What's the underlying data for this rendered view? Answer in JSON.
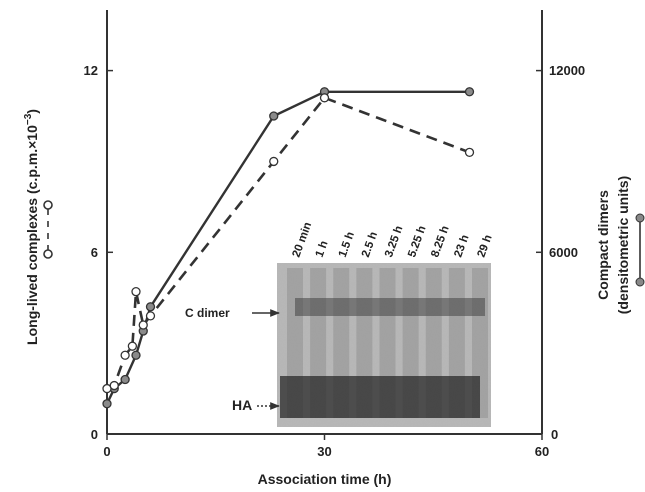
{
  "chart_data": {
    "type": "line",
    "xlabel": "Association time (h)",
    "ylabel_left": "Long-lived complexes (c.p.m.×10",
    "ylabel_left_exp": "−3",
    "ylabel_left_close": ")",
    "ylabel_right_line1": "Compact dimers",
    "ylabel_right_line2": "(densitometric units)",
    "xlim": [
      0,
      60
    ],
    "ylim_left": [
      0,
      14
    ],
    "ylim_right": [
      0,
      14000
    ],
    "x_ticks": [
      "0",
      "30",
      "60"
    ],
    "y_left_ticks": [
      "0",
      "6",
      "12"
    ],
    "y_right_ticks": [
      "0",
      "6000",
      "12000"
    ],
    "series": [
      {
        "marker": "filled",
        "line": "solid",
        "axis": "right",
        "x": [
          0,
          1,
          2.5,
          4,
          5,
          6,
          23,
          30,
          50
        ],
        "y": [
          1000,
          1500,
          1800,
          2600,
          3400,
          4200,
          10500,
          11300,
          11300
        ]
      },
      {
        "marker": "open",
        "line": "dashed",
        "axis": "left",
        "x": [
          0,
          1,
          2.5,
          3.5,
          4,
          5,
          6,
          23,
          30,
          50
        ],
        "y": [
          1.5,
          1.6,
          2.6,
          2.9,
          4.7,
          3.6,
          3.9,
          9.0,
          11.1,
          9.3
        ]
      }
    ],
    "legend_markers": {
      "left_axis": "o — o",
      "right_axis": "●—●"
    },
    "inset_gel": {
      "lanes": [
        "20 min",
        "1 h",
        "1.5 h",
        "2.5 h",
        "3.25 h",
        "5.25 h",
        "8.25 h",
        "23 h",
        "29 h"
      ],
      "bands": [
        "C dimer",
        "HA"
      ]
    }
  }
}
